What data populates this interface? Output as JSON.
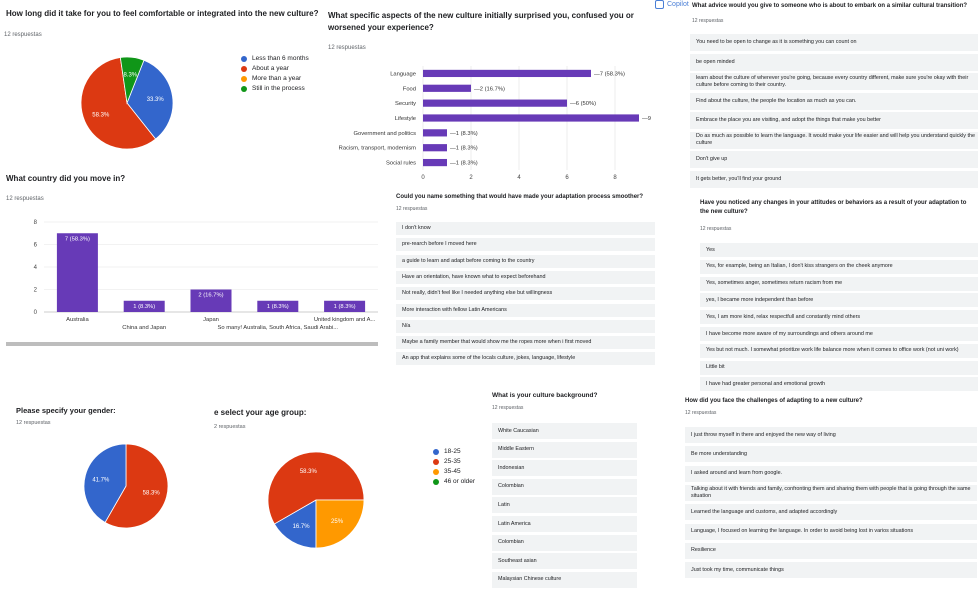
{
  "colors": {
    "blue": "#3366cc",
    "red": "#dc3912",
    "orange": "#ff9900",
    "green": "#109618",
    "purple": "#673ab7"
  },
  "p1": {
    "title": "How long did it take for you to feel comfortable or integrated into the new culture?",
    "responses": "12 respuestas"
  },
  "p2": {
    "title_line1": "What specific aspects of the new culture initially surprised you, confused you or",
    "title_line2": "worsened your experience?",
    "responses": "12 respuestas"
  },
  "p3": {
    "brand": "Copilot",
    "title": "What advice would you give to someone who is about to embark on a similar cultural transition?",
    "responses": "12 respuestas",
    "answers": [
      "You need to be open to change as it is something you can count on",
      "be open minded",
      "learn about the culture of wherever you're going, because every country different, make sure you're okay with their culture before coming to their country.",
      "Find about the culture, the people the location as much as you can.",
      "Embrace the place you are visiting, and adopt the things that make you better",
      "Do as much as possible to learn the language. It would make your life easier and will help you understand quickly the culture",
      "Don't give up",
      "It gets better, you'll find your ground"
    ]
  },
  "p4": {
    "title": "What country did you move in?",
    "responses": "12 respuestas"
  },
  "p5": {
    "title": "Could you name something that would have made your adaptation process smoother?",
    "responses": "12 respuestas",
    "answers": [
      "I don't know",
      "pre-rearch before I moved here",
      "a guide to learn and adapt before coming to the country",
      "Have an orientation, have known what to expect beforehand",
      "Not really, didn't feel like I needed anything else but willingness",
      "More interaction with fellow Latin Americans",
      "N/a",
      "Maybe a family member that would show me the ropes more when i first moved",
      "An app that explains some of the locals culture, jokes, language, lifestyle"
    ]
  },
  "p6": {
    "title_line1": "Have you noticed any changes in your attitudes or behaviors as a result of your adaptation to",
    "title_line2": "the new culture?",
    "responses": "12 respuestas",
    "answers": [
      "Yes",
      "Yes, for example, being an Italian, I don't kiss strangers on the cheek anymore",
      "Yes, sometimes anger, sometimes return racism from me",
      "yes, I became more independent than before",
      "Yes, I am more kind, relax respectfull and constantly mind others",
      "I have become more aware of my surroundings and others around me",
      "Yes but not much. I somewhat prioritize work life balance more when it comes to office work (not uni work)",
      "Little bit",
      "I have had greater personal and emotional growth"
    ]
  },
  "p7": {
    "title": "Please specify your gender:",
    "responses": "12 respuestas"
  },
  "p8": {
    "title": "e select your age group:",
    "responses": "2 respuestas"
  },
  "p9": {
    "title": "What is your culture background?",
    "responses": "12 respuestas",
    "answers": [
      "White Caucasian",
      "Middle Eastern",
      "Indonesian",
      "Colombian",
      "Latin",
      "Latin America",
      "Colombian",
      "Southeast asian",
      "Malaysian Chinese culture"
    ]
  },
  "p10": {
    "title": "How did you face the challenges of adapting to a new culture?",
    "responses": "12 respuestas",
    "answers": [
      "I just throw myself in there and enjoyed the new way of living",
      "Be more understanding",
      "I asked around and learn from google.",
      "Talking about it with friends and family, confronting them and sharing them with people that is going through the same situation",
      "Learned the language and customs, and adapted accordingly",
      "Language, I focused on learning the language. In order to avoid being lost in varios situations",
      "Resilience",
      "Just took my time, communicate things"
    ]
  },
  "chart_data": [
    {
      "id": "integration",
      "type": "pie",
      "categories": [
        "Less than 6 months",
        "About a year",
        "More than a year",
        "Still in the process"
      ],
      "values": [
        33.3,
        58.3,
        0,
        8.3
      ],
      "labels": [
        "33.3%",
        "58.3%",
        "",
        "8.3%"
      ],
      "colors": [
        "#3366cc",
        "#dc3912",
        "#ff9900",
        "#109618"
      ],
      "legend": "right"
    },
    {
      "id": "aspects",
      "type": "bar",
      "orientation": "horizontal",
      "categories": [
        "Language",
        "Food",
        "Security",
        "Lifestyle",
        "Government and politics",
        "Racism, transport, modernism",
        "Social rules"
      ],
      "values": [
        7,
        2,
        6,
        9,
        1,
        1,
        1
      ],
      "labels": [
        "7 (58.3%)",
        "2 (16.7%)",
        "6 (50%)",
        "9 (75%)",
        "1 (8.3%)",
        "1 (8.3%)",
        "1 (8.3%)"
      ],
      "xticks": [
        "0",
        "2",
        "4",
        "6",
        "8",
        "10"
      ],
      "xlim": [
        0,
        10
      ],
      "color": "#673ab7"
    },
    {
      "id": "country",
      "type": "bar",
      "categories": [
        "Australia",
        "China and Japan",
        "Japan",
        "So many! Australia, South Africa, Saudi Arabi...",
        "United kingdom and A..."
      ],
      "values": [
        7,
        1,
        2,
        1,
        1
      ],
      "labels": [
        "7 (58.3%)",
        "1 (8.3%)",
        "2 (16.7%)",
        "1 (8.3%)",
        "1 (8.3%)"
      ],
      "yticks": [
        "0",
        "2",
        "4",
        "6",
        "8"
      ],
      "ylim": [
        0,
        8
      ],
      "color": "#673ab7"
    },
    {
      "id": "gender",
      "type": "pie",
      "values": [
        58.3,
        41.7
      ],
      "labels": [
        "58.3%",
        "41.7%"
      ],
      "colors": [
        "#dc3912",
        "#3366cc"
      ]
    },
    {
      "id": "age",
      "type": "pie",
      "categories": [
        "18-25",
        "25-35",
        "35-45",
        "46 or older"
      ],
      "values": [
        16.7,
        58.3,
        25,
        0
      ],
      "labels": [
        "16.7%",
        "58.3%",
        "25%",
        ""
      ],
      "colors": [
        "#3366cc",
        "#dc3912",
        "#ff9900",
        "#109618"
      ],
      "legend": "right"
    }
  ]
}
